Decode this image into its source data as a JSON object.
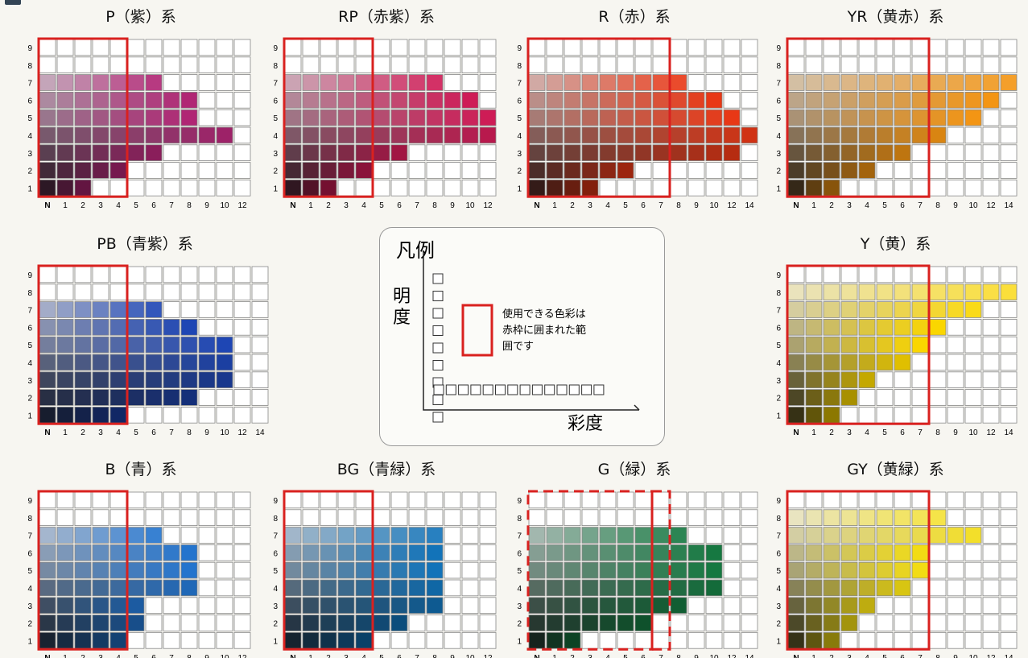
{
  "legend": {
    "title": "凡例",
    "y_label": "明度",
    "x_label": "彩度",
    "note_lines": [
      "使用できる色彩は",
      "赤枠に囲まれた範",
      "囲です"
    ],
    "frame_color": "#d9211f"
  },
  "panels": [
    {
      "id": "P",
      "title": "P（紫）系",
      "x_ticks": [
        "N",
        "1",
        "2",
        "3",
        "4",
        "5",
        "6",
        "7",
        "8",
        "9",
        "10",
        "12"
      ],
      "limit_col": 4,
      "frame": "solid",
      "hue": [
        176,
        38,
        116
      ],
      "rows": {
        "1": 2,
        "2": 4,
        "3": 6,
        "4": 10,
        "5": 8,
        "6": 8,
        "7": 6,
        "8": 0,
        "9": 0
      }
    },
    {
      "id": "RP",
      "title": "RP（赤紫）系",
      "x_ticks": [
        "N",
        "1",
        "2",
        "3",
        "4",
        "5",
        "6",
        "7",
        "8",
        "9",
        "10",
        "12"
      ],
      "limit_col": 4,
      "frame": "solid",
      "hue": [
        206,
        28,
        86
      ],
      "rows": {
        "1": 2,
        "2": 4,
        "3": 6,
        "4": 12,
        "5": 12,
        "6": 10,
        "7": 8,
        "8": 0,
        "9": 0
      }
    },
    {
      "id": "R",
      "title": "R（赤）系",
      "x_ticks": [
        "N",
        "1",
        "2",
        "3",
        "4",
        "5",
        "6",
        "7",
        "8",
        "9",
        "10",
        "12",
        "14"
      ],
      "limit_col": 7,
      "frame": "solid",
      "hue": [
        232,
        56,
        22
      ],
      "rows": {
        "1": 3,
        "2": 5,
        "3": 12,
        "4": 14,
        "5": 12,
        "6": 10,
        "7": 8,
        "8": 0,
        "9": 0
      }
    },
    {
      "id": "YR",
      "title": "YR（黄赤）系",
      "x_ticks": [
        "N",
        "1",
        "2",
        "3",
        "4",
        "5",
        "6",
        "7",
        "8",
        "9",
        "10",
        "12",
        "14"
      ],
      "limit_col": 7,
      "frame": "solid",
      "hue": [
        243,
        149,
        20
      ],
      "rows": {
        "1": 2,
        "2": 4,
        "3": 6,
        "4": 8,
        "5": 10,
        "6": 12,
        "7": 14,
        "8": 0,
        "9": 0
      }
    },
    {
      "id": "PB",
      "title": "PB（青紫）系",
      "x_ticks": [
        "N",
        "1",
        "2",
        "3",
        "4",
        "5",
        "6",
        "7",
        "8",
        "9",
        "10",
        "12",
        "14"
      ],
      "limit_col": 4,
      "frame": "solid",
      "hue": [
        30,
        70,
        180
      ],
      "rows": {
        "1": 4,
        "2": 8,
        "3": 10,
        "4": 10,
        "5": 10,
        "6": 8,
        "7": 6,
        "8": 0,
        "9": 0
      }
    },
    {
      "id": "Y",
      "title": "Y（黄）系",
      "x_ticks": [
        "N",
        "1",
        "2",
        "3",
        "4",
        "5",
        "6",
        "7",
        "8",
        "9",
        "10",
        "12",
        "14"
      ],
      "limit_col": 7,
      "frame": "solid",
      "hue": [
        250,
        214,
        0
      ],
      "rows": {
        "1": 2,
        "2": 3,
        "3": 4,
        "4": 6,
        "5": 7,
        "6": 8,
        "7": 10,
        "8": 14,
        "9": 0
      }
    },
    {
      "id": "B",
      "title": "B（青）系",
      "x_ticks": [
        "N",
        "1",
        "2",
        "3",
        "4",
        "5",
        "6",
        "7",
        "8",
        "9",
        "10",
        "12"
      ],
      "limit_col": 4,
      "frame": "solid",
      "hue": [
        36,
        116,
        205
      ],
      "rows": {
        "1": 4,
        "2": 5,
        "3": 5,
        "4": 8,
        "5": 8,
        "6": 8,
        "7": 6,
        "8": 0,
        "9": 0
      }
    },
    {
      "id": "BG",
      "title": "BG（青緑）系",
      "x_ticks": [
        "N",
        "1",
        "2",
        "3",
        "4",
        "5",
        "6",
        "7",
        "8",
        "9",
        "10",
        "12"
      ],
      "limit_col": 4,
      "frame": "solid",
      "hue": [
        18,
        115,
        185
      ],
      "rows": {
        "1": 4,
        "2": 6,
        "3": 8,
        "4": 8,
        "5": 8,
        "6": 8,
        "7": 8,
        "8": 0,
        "9": 0
      }
    },
    {
      "id": "G",
      "title": "G（緑）系",
      "x_ticks": [
        "N",
        "1",
        "2",
        "3",
        "4",
        "5",
        "6",
        "7",
        "8",
        "9",
        "10",
        "12",
        "14"
      ],
      "limit_col": 6,
      "frame": "dashed",
      "hue": [
        22,
        120,
        65
      ],
      "rows": {
        "1": 2,
        "2": 6,
        "3": 8,
        "4": 10,
        "5": 10,
        "6": 10,
        "7": 8,
        "8": 0,
        "9": 0
      }
    },
    {
      "id": "GY",
      "title": "GY（黄緑）系",
      "x_ticks": [
        "N",
        "1",
        "2",
        "3",
        "4",
        "5",
        "6",
        "7",
        "8",
        "9",
        "10",
        "12",
        "14"
      ],
      "limit_col": 7,
      "frame": "solid",
      "hue": [
        242,
        220,
        20
      ],
      "rows": {
        "1": 2,
        "2": 3,
        "3": 4,
        "4": 6,
        "5": 7,
        "6": 7,
        "7": 10,
        "8": 8,
        "9": 0
      }
    }
  ]
}
